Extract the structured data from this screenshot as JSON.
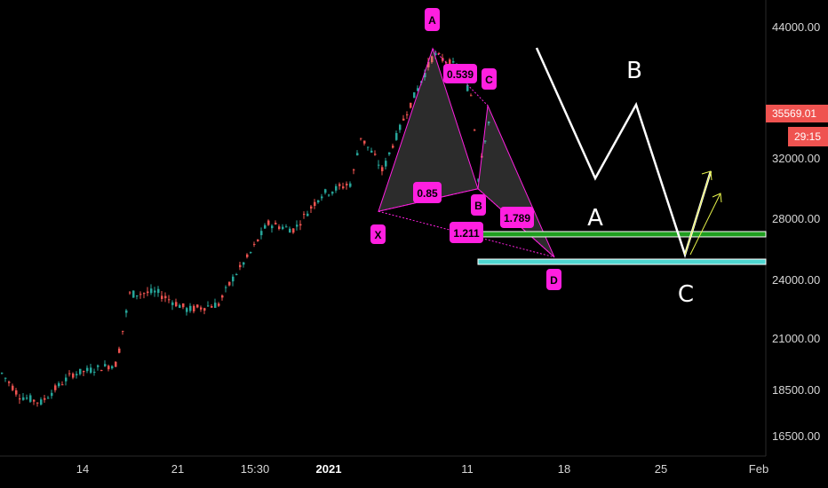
{
  "chart_data": {
    "type": "candlestick",
    "title": "",
    "xlabel": "",
    "ylabel": "",
    "ylim": [
      15800,
      45500
    ],
    "y_ticks": [
      "44000.00",
      "32000.00",
      "28000.00",
      "24000.00",
      "21000.00",
      "18500.00",
      "16500.00"
    ],
    "x_ticks": [
      {
        "label": "14",
        "bold": false
      },
      {
        "label": "21",
        "bold": false
      },
      {
        "label": "15:30",
        "bold": false
      },
      {
        "label": "2021",
        "bold": true
      },
      {
        "label": "11",
        "bold": false
      },
      {
        "label": "18",
        "bold": false
      },
      {
        "label": "25",
        "bold": false
      },
      {
        "label": "Feb",
        "bold": false
      }
    ],
    "last_price": "35569.01",
    "countdown": "29:15",
    "harmonic_pattern": {
      "points": [
        {
          "label": "X",
          "value": 28400
        },
        {
          "label": "A",
          "value": 41900
        },
        {
          "label": "B",
          "value": 29900
        },
        {
          "label": "C",
          "value": 36700
        },
        {
          "label": "D",
          "value": 25400
        }
      ],
      "ratios": [
        "0.539",
        "0.85",
        "1.789",
        "1.211"
      ]
    },
    "support_levels": [
      {
        "value": 26900,
        "color": "#1f9e1f"
      },
      {
        "value": 25100,
        "color": "#4fd6d0"
      }
    ],
    "projection_labels": [
      "A",
      "B",
      "C"
    ],
    "colors": {
      "up": "#26a69a",
      "down": "#ef5350",
      "pattern": "#ff1fe0",
      "projection": "#ffffff",
      "arrow": "#e6f24a"
    }
  }
}
